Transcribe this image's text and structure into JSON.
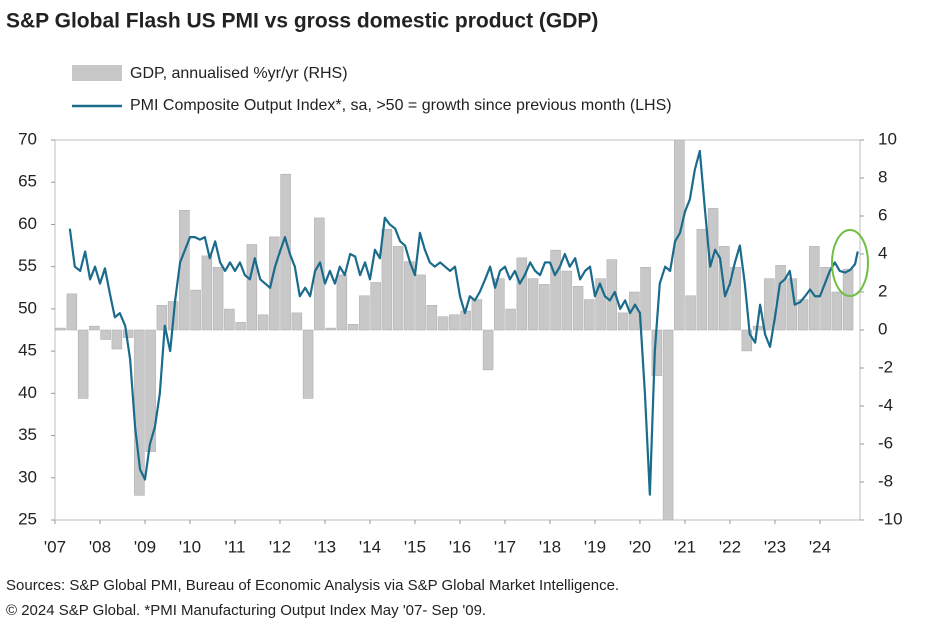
{
  "chart_data": {
    "type": "combo",
    "title": "S&P Global Flash US PMI vs gross domestic product (GDP)",
    "notes": [
      "Sources: S&P Global PMI, Bureau of Economic Analysis via S&P Global Market Intelligence.",
      "© 2024 S&P Global.  *PMI Manufacturing Output Index May '07- Sep '09."
    ],
    "xlim": [
      2007,
      2024.89
    ],
    "xticks": [
      {
        "value": 2007,
        "label": "'07"
      },
      {
        "value": 2008,
        "label": "'08"
      },
      {
        "value": 2009,
        "label": "'09"
      },
      {
        "value": 2010,
        "label": "'10"
      },
      {
        "value": 2011,
        "label": "'11"
      },
      {
        "value": 2012,
        "label": "'12"
      },
      {
        "value": 2013,
        "label": "'13"
      },
      {
        "value": 2014,
        "label": "'14"
      },
      {
        "value": 2015,
        "label": "'15"
      },
      {
        "value": 2016,
        "label": "'16"
      },
      {
        "value": 2017,
        "label": "'17"
      },
      {
        "value": 2018,
        "label": "'18"
      },
      {
        "value": 2019,
        "label": "'19"
      },
      {
        "value": 2020,
        "label": "'20"
      },
      {
        "value": 2021,
        "label": "'21"
      },
      {
        "value": 2022,
        "label": "'22"
      },
      {
        "value": 2023,
        "label": "'23"
      },
      {
        "value": 2024,
        "label": "'24"
      }
    ],
    "ylim": [
      25,
      70
    ],
    "yticks": [
      25,
      30,
      35,
      40,
      45,
      50,
      55,
      60,
      65,
      70
    ],
    "y2lim": [
      -10,
      10
    ],
    "y2ticks": [
      -10,
      -8,
      -6,
      -4,
      -2,
      0,
      2,
      4,
      6,
      8,
      10
    ],
    "series": [
      {
        "name": "GDP, annualised %yr/yr (RHS)",
        "type": "bar",
        "axis": "y2",
        "color": "#c8c8c8",
        "x": [
          2007.125,
          2007.375,
          2007.625,
          2007.875,
          2008.125,
          2008.375,
          2008.625,
          2008.875,
          2009.125,
          2009.375,
          2009.625,
          2009.875,
          2010.125,
          2010.375,
          2010.625,
          2010.875,
          2011.125,
          2011.375,
          2011.625,
          2011.875,
          2012.125,
          2012.375,
          2012.625,
          2012.875,
          2013.125,
          2013.375,
          2013.625,
          2013.875,
          2014.125,
          2014.375,
          2014.625,
          2014.875,
          2015.125,
          2015.375,
          2015.625,
          2015.875,
          2016.125,
          2016.375,
          2016.625,
          2016.875,
          2017.125,
          2017.375,
          2017.625,
          2017.875,
          2018.125,
          2018.375,
          2018.625,
          2018.875,
          2019.125,
          2019.375,
          2019.625,
          2019.875,
          2020.125,
          2020.375,
          2020.625,
          2020.875,
          2021.125,
          2021.375,
          2021.625,
          2021.875,
          2022.125,
          2022.375,
          2022.625,
          2022.875,
          2023.125,
          2023.375,
          2023.625,
          2023.875,
          2024.125,
          2024.375,
          2024.625
        ],
        "values": [
          0.1,
          1.9,
          -3.6,
          0.2,
          -0.5,
          -1.0,
          -0.4,
          -8.7,
          -6.4,
          1.3,
          1.5,
          6.3,
          2.1,
          3.9,
          3.3,
          1.1,
          0.4,
          4.5,
          0.8,
          4.9,
          8.2,
          0.9,
          -3.6,
          5.9,
          0.1,
          2.9,
          0.3,
          1.8,
          2.5,
          5.3,
          4.4,
          3.6,
          2.9,
          1.3,
          0.7,
          0.8,
          1.0,
          1.6,
          -2.1,
          2.7,
          1.1,
          3.8,
          2.7,
          2.4,
          4.2,
          3.1,
          2.3,
          1.6,
          2.7,
          3.7,
          0.9,
          2.0,
          3.3,
          -2.4,
          -10,
          10,
          1.8,
          5.3,
          6.4,
          4.4,
          3.3,
          -1.1,
          0.2,
          2.7,
          3.4,
          2.7,
          1.6,
          4.4,
          3.3,
          2.0,
          3.2
        ]
      },
      {
        "name": "PMI Composite Output Index*, sa, >50 = growth since previous month (LHS)",
        "type": "line",
        "color": "#1b6b8c",
        "x": [
          2007.33,
          2007.44,
          2007.56,
          2007.67,
          2007.78,
          2007.89,
          2008.0,
          2008.11,
          2008.22,
          2008.33,
          2008.44,
          2008.56,
          2008.67,
          2008.78,
          2008.89,
          2009.0,
          2009.11,
          2009.22,
          2009.33,
          2009.44,
          2009.56,
          2009.67,
          2009.78,
          2009.89,
          2010.0,
          2010.11,
          2010.22,
          2010.33,
          2010.44,
          2010.56,
          2010.67,
          2010.78,
          2010.89,
          2011.0,
          2011.11,
          2011.22,
          2011.33,
          2011.44,
          2011.56,
          2011.67,
          2011.78,
          2011.89,
          2012.0,
          2012.11,
          2012.22,
          2012.33,
          2012.44,
          2012.56,
          2012.67,
          2012.78,
          2012.89,
          2013.0,
          2013.11,
          2013.22,
          2013.33,
          2013.44,
          2013.56,
          2013.67,
          2013.78,
          2013.89,
          2014.0,
          2014.11,
          2014.22,
          2014.33,
          2014.44,
          2014.56,
          2014.67,
          2014.78,
          2014.89,
          2015.0,
          2015.11,
          2015.22,
          2015.33,
          2015.44,
          2015.56,
          2015.67,
          2015.78,
          2015.89,
          2016.0,
          2016.11,
          2016.22,
          2016.33,
          2016.44,
          2016.56,
          2016.67,
          2016.78,
          2016.89,
          2017.0,
          2017.11,
          2017.22,
          2017.33,
          2017.44,
          2017.56,
          2017.67,
          2017.78,
          2017.89,
          2018.0,
          2018.11,
          2018.22,
          2018.33,
          2018.44,
          2018.56,
          2018.67,
          2018.78,
          2018.89,
          2019.0,
          2019.11,
          2019.22,
          2019.33,
          2019.44,
          2019.56,
          2019.67,
          2019.78,
          2019.89,
          2020.0,
          2020.11,
          2020.22,
          2020.33,
          2020.44,
          2020.56,
          2020.67,
          2020.78,
          2020.89,
          2021.0,
          2021.11,
          2021.22,
          2021.33,
          2021.44,
          2021.56,
          2021.67,
          2021.78,
          2021.89,
          2022.0,
          2022.11,
          2022.22,
          2022.33,
          2022.44,
          2022.56,
          2022.67,
          2022.78,
          2022.89,
          2023.0,
          2023.11,
          2023.22,
          2023.33,
          2023.44,
          2023.56,
          2023.67,
          2023.78,
          2023.89,
          2024.0,
          2024.11,
          2024.22,
          2024.33,
          2024.44,
          2024.56,
          2024.67,
          2024.78,
          2024.84
        ],
        "values": [
          59.5,
          55,
          54.5,
          56.8,
          53.5,
          55,
          53,
          54.8,
          51.8,
          49,
          49.5,
          48,
          44,
          36,
          31,
          29.8,
          34,
          36,
          40,
          48,
          45,
          51,
          55.5,
          57,
          58.5,
          58.5,
          58.2,
          58.5,
          56,
          58,
          55.5,
          54.5,
          55.5,
          54.5,
          55.5,
          54,
          53.5,
          56,
          53.5,
          53,
          52.5,
          55,
          56.8,
          58.5,
          56.5,
          55,
          51.5,
          52.5,
          51.5,
          54.5,
          55.5,
          53,
          54.5,
          53,
          55,
          54,
          56.5,
          56.2,
          54,
          55.5,
          53.5,
          57,
          56,
          60.8,
          60,
          59.5,
          58,
          57.5,
          55.5,
          54,
          59,
          57,
          55.5,
          55,
          55.5,
          55,
          54.5,
          55,
          51.5,
          49.5,
          51.5,
          51,
          52,
          53.5,
          55,
          52.5,
          54.5,
          55,
          53.5,
          54.5,
          53,
          54,
          55.5,
          54.5,
          54,
          55.5,
          55.5,
          54,
          55,
          56.5,
          55,
          56,
          53.5,
          54.5,
          55,
          51.5,
          53,
          51.5,
          51,
          52,
          50,
          51,
          49.5,
          50.5,
          49.5,
          40,
          28,
          45,
          53,
          55,
          54.5,
          58,
          59,
          61.5,
          63,
          66.5,
          68.7,
          62,
          55,
          57,
          56,
          51.5,
          53,
          55.5,
          57.5,
          53,
          47,
          46,
          50.5,
          47,
          45.5,
          49,
          53,
          53.5,
          54.5,
          50.5,
          50.8,
          51.5,
          52.3,
          51.5,
          51.5,
          53,
          54.5,
          55.5,
          54.5,
          54.3,
          54.6,
          55.3,
          56.8
        ]
      }
    ]
  }
}
